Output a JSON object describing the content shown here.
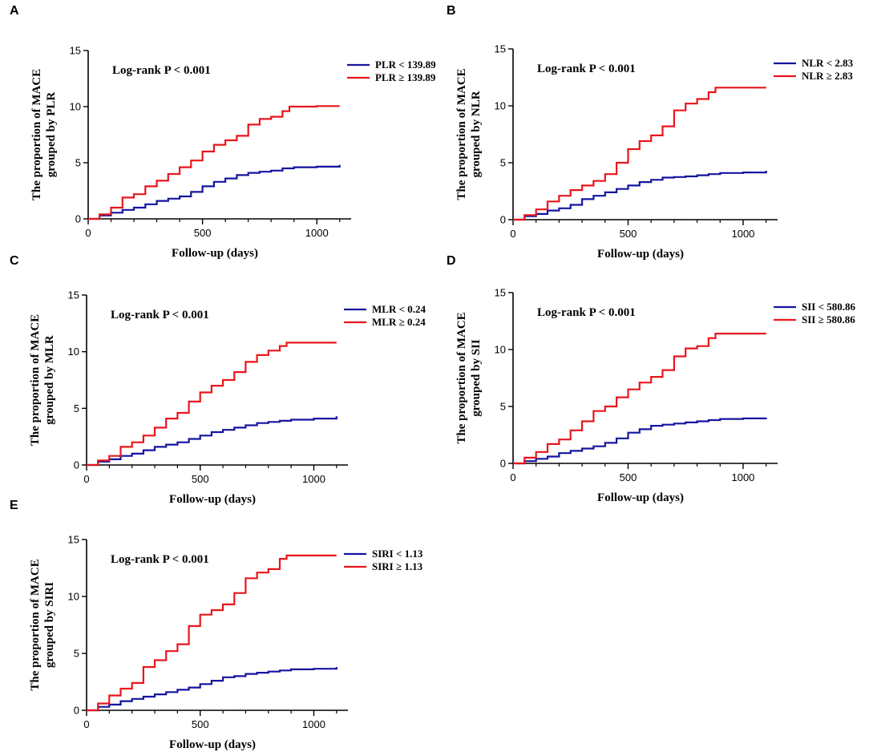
{
  "chart_data": [
    {
      "panel": "A",
      "type": "line",
      "title": "",
      "xlabel": "Follow-up (days)",
      "ylabel": [
        "The proportion of MACE",
        "grouped by PLR"
      ],
      "xlim": [
        0,
        1150
      ],
      "ylim": [
        0,
        15
      ],
      "xticks": [
        0,
        500,
        1000
      ],
      "yticks": [
        0,
        5,
        10,
        15
      ],
      "annotation": "Log-rank P < 0.001",
      "series": [
        {
          "name": "PLR < 139.89",
          "color": "#1414a0",
          "x": [
            0,
            50,
            100,
            150,
            200,
            250,
            300,
            350,
            400,
            450,
            500,
            550,
            600,
            650,
            700,
            750,
            800,
            850,
            900,
            1000,
            1100
          ],
          "y": [
            0,
            0.3,
            0.55,
            0.8,
            1.0,
            1.3,
            1.6,
            1.8,
            2.0,
            2.4,
            2.9,
            3.3,
            3.6,
            3.9,
            4.1,
            4.2,
            4.3,
            4.5,
            4.6,
            4.65,
            4.8
          ]
        },
        {
          "name": "PLR ≥ 139.89",
          "color": "#e8161c",
          "x": [
            0,
            50,
            100,
            150,
            200,
            250,
            300,
            350,
            400,
            450,
            500,
            550,
            600,
            650,
            700,
            750,
            800,
            850,
            880,
            1000,
            1100
          ],
          "y": [
            0,
            0.4,
            1.0,
            1.9,
            2.2,
            2.9,
            3.4,
            4.0,
            4.6,
            5.2,
            6.0,
            6.6,
            7.0,
            7.4,
            8.4,
            8.9,
            9.1,
            9.6,
            10.0,
            10.05,
            10.05
          ]
        }
      ]
    },
    {
      "panel": "B",
      "type": "line",
      "title": "",
      "xlabel": "Follow-up (days)",
      "ylabel": [
        "The proportion of MACE",
        "grouped by NLR"
      ],
      "xlim": [
        0,
        1150
      ],
      "ylim": [
        0,
        15
      ],
      "xticks": [
        0,
        500,
        1000
      ],
      "yticks": [
        0,
        5,
        10,
        15
      ],
      "annotation": "Log-rank P < 0.001",
      "series": [
        {
          "name": "NLR < 2.83",
          "color": "#1414a0",
          "x": [
            0,
            50,
            100,
            150,
            200,
            250,
            300,
            350,
            400,
            450,
            500,
            550,
            600,
            650,
            700,
            750,
            800,
            850,
            900,
            1000,
            1100
          ],
          "y": [
            0,
            0.3,
            0.5,
            0.8,
            1.0,
            1.3,
            1.8,
            2.1,
            2.4,
            2.7,
            3.0,
            3.3,
            3.5,
            3.7,
            3.75,
            3.8,
            3.9,
            4.0,
            4.1,
            4.15,
            4.3
          ]
        },
        {
          "name": "NLR ≥ 2.83",
          "color": "#e8161c",
          "x": [
            0,
            50,
            100,
            150,
            200,
            250,
            300,
            350,
            400,
            450,
            500,
            550,
            600,
            650,
            700,
            750,
            800,
            850,
            880,
            1000,
            1100
          ],
          "y": [
            0,
            0.4,
            0.9,
            1.6,
            2.1,
            2.6,
            3.0,
            3.4,
            4.0,
            5.0,
            6.2,
            6.9,
            7.4,
            8.2,
            9.6,
            10.2,
            10.6,
            11.2,
            11.6,
            11.6,
            11.6
          ]
        }
      ]
    },
    {
      "panel": "C",
      "type": "line",
      "title": "",
      "xlabel": "Follow-up (days)",
      "ylabel": [
        "The proportion of MACE",
        "grouped by MLR"
      ],
      "xlim": [
        0,
        1150
      ],
      "ylim": [
        0,
        15
      ],
      "xticks": [
        0,
        500,
        1000
      ],
      "yticks": [
        0,
        5,
        10,
        15
      ],
      "annotation": "Log-rank P < 0.001",
      "series": [
        {
          "name": "MLR < 0.24",
          "color": "#1414a0",
          "x": [
            0,
            50,
            100,
            150,
            200,
            250,
            300,
            350,
            400,
            450,
            500,
            550,
            600,
            650,
            700,
            750,
            800,
            850,
            900,
            1000,
            1100
          ],
          "y": [
            0,
            0.3,
            0.5,
            0.8,
            1.0,
            1.3,
            1.6,
            1.8,
            2.0,
            2.3,
            2.6,
            2.9,
            3.1,
            3.3,
            3.5,
            3.7,
            3.8,
            3.9,
            4.0,
            4.1,
            4.3
          ]
        },
        {
          "name": "MLR ≥ 0.24",
          "color": "#e8161c",
          "x": [
            0,
            50,
            100,
            150,
            200,
            250,
            300,
            350,
            400,
            450,
            500,
            550,
            600,
            650,
            700,
            750,
            800,
            850,
            880,
            1000,
            1100
          ],
          "y": [
            0,
            0.4,
            0.8,
            1.6,
            2.0,
            2.6,
            3.3,
            4.1,
            4.6,
            5.6,
            6.4,
            7.0,
            7.5,
            8.2,
            9.1,
            9.7,
            10.1,
            10.5,
            10.8,
            10.8,
            10.8
          ]
        }
      ]
    },
    {
      "panel": "D",
      "type": "line",
      "title": "",
      "xlabel": "Follow-up (days)",
      "ylabel": [
        "The proportion of MACE",
        "grouped by SII"
      ],
      "xlim": [
        0,
        1150
      ],
      "ylim": [
        0,
        15
      ],
      "xticks": [
        0,
        500,
        1000
      ],
      "yticks": [
        0,
        5,
        10,
        15
      ],
      "annotation": "Log-rank P < 0.001",
      "series": [
        {
          "name": "SII < 580.86",
          "color": "#1414a0",
          "x": [
            0,
            50,
            100,
            150,
            200,
            250,
            300,
            350,
            400,
            450,
            500,
            550,
            600,
            650,
            700,
            750,
            800,
            850,
            900,
            1000,
            1100
          ],
          "y": [
            0,
            0.2,
            0.4,
            0.6,
            0.9,
            1.1,
            1.3,
            1.5,
            1.8,
            2.2,
            2.7,
            3.0,
            3.3,
            3.4,
            3.5,
            3.6,
            3.7,
            3.8,
            3.9,
            3.95,
            4.0
          ]
        },
        {
          "name": "SII ≥ 580.86",
          "color": "#e8161c",
          "x": [
            0,
            50,
            100,
            150,
            200,
            250,
            300,
            350,
            400,
            450,
            500,
            550,
            600,
            650,
            700,
            750,
            800,
            850,
            880,
            1000,
            1100
          ],
          "y": [
            0,
            0.5,
            1.0,
            1.7,
            2.1,
            2.9,
            3.7,
            4.6,
            5.0,
            5.8,
            6.5,
            7.1,
            7.6,
            8.2,
            9.4,
            10.1,
            10.3,
            11.0,
            11.4,
            11.4,
            11.4
          ]
        }
      ]
    },
    {
      "panel": "E",
      "type": "line",
      "title": "",
      "xlabel": "Follow-up (days)",
      "ylabel": [
        "The proportion of MACE",
        "grouped by SIRI"
      ],
      "xlim": [
        0,
        1150
      ],
      "ylim": [
        0,
        15
      ],
      "xticks": [
        0,
        500,
        1000
      ],
      "yticks": [
        0,
        5,
        10,
        15
      ],
      "annotation": "Log-rank P < 0.001",
      "series": [
        {
          "name": "SIRI < 1.13",
          "color": "#1414a0",
          "x": [
            0,
            50,
            100,
            150,
            200,
            250,
            300,
            350,
            400,
            450,
            500,
            550,
            600,
            650,
            700,
            750,
            800,
            850,
            900,
            1000,
            1100
          ],
          "y": [
            0,
            0.3,
            0.5,
            0.8,
            1.0,
            1.2,
            1.4,
            1.6,
            1.8,
            2.0,
            2.3,
            2.6,
            2.9,
            3.0,
            3.2,
            3.3,
            3.4,
            3.5,
            3.6,
            3.65,
            3.8
          ]
        },
        {
          "name": "SIRI ≥ 1.13",
          "color": "#e8161c",
          "x": [
            0,
            50,
            100,
            150,
            200,
            250,
            300,
            350,
            400,
            450,
            500,
            550,
            600,
            650,
            700,
            750,
            800,
            850,
            880,
            1000,
            1100
          ],
          "y": [
            0,
            0.6,
            1.3,
            1.9,
            2.4,
            3.8,
            4.4,
            5.2,
            5.8,
            7.4,
            8.4,
            8.8,
            9.3,
            10.3,
            11.6,
            12.1,
            12.4,
            13.3,
            13.6,
            13.6,
            13.6
          ]
        }
      ]
    }
  ]
}
